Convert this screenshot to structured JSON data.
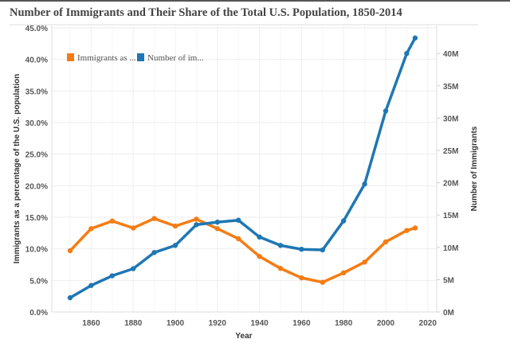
{
  "chart_data": {
    "type": "line",
    "title": "Number of Immigrants and Their Share of the Total U.S. Population, 1850-2014",
    "xlabel": "Year",
    "ylabel_left": "Immigrants as a percentage of the U.S. population",
    "ylabel_right": "Number of Immigrants",
    "x": [
      1850,
      1860,
      1870,
      1880,
      1890,
      1900,
      1910,
      1920,
      1930,
      1940,
      1950,
      1960,
      1970,
      1980,
      1990,
      2000,
      2010,
      2014
    ],
    "xticks": [
      "1860",
      "1880",
      "1900",
      "1920",
      "1940",
      "1960",
      "1980",
      "2000",
      "2020"
    ],
    "yticks_left": [
      "0.0%",
      "5.0%",
      "10.0%",
      "15.0%",
      "20.0%",
      "25.0%",
      "30.0%",
      "35.0%",
      "40.0%",
      "45.0%"
    ],
    "yticks_right": [
      "0M",
      "5M",
      "10M",
      "15M",
      "20M",
      "25M",
      "30M",
      "35M",
      "40M"
    ],
    "ylim_left": [
      0,
      45
    ],
    "ylim_right": [
      0,
      44
    ],
    "xlim": [
      1840,
      2025
    ],
    "grid": true,
    "legend_placement": "top-left",
    "series": [
      {
        "name": "Immigrants as ...",
        "axis": "left",
        "color": "#f57c14",
        "values": [
          9.7,
          13.2,
          14.4,
          13.3,
          14.8,
          13.6,
          14.7,
          13.2,
          11.6,
          8.8,
          6.9,
          5.4,
          4.7,
          6.2,
          7.9,
          11.1,
          12.9,
          13.3
        ]
      },
      {
        "name": "Number of im...",
        "axis": "right",
        "color": "#1f77b4",
        "values": [
          2.2,
          4.1,
          5.6,
          6.7,
          9.2,
          10.3,
          13.5,
          13.9,
          14.2,
          11.6,
          10.3,
          9.7,
          9.6,
          14.1,
          19.8,
          31.1,
          40.0,
          42.4
        ]
      }
    ]
  }
}
